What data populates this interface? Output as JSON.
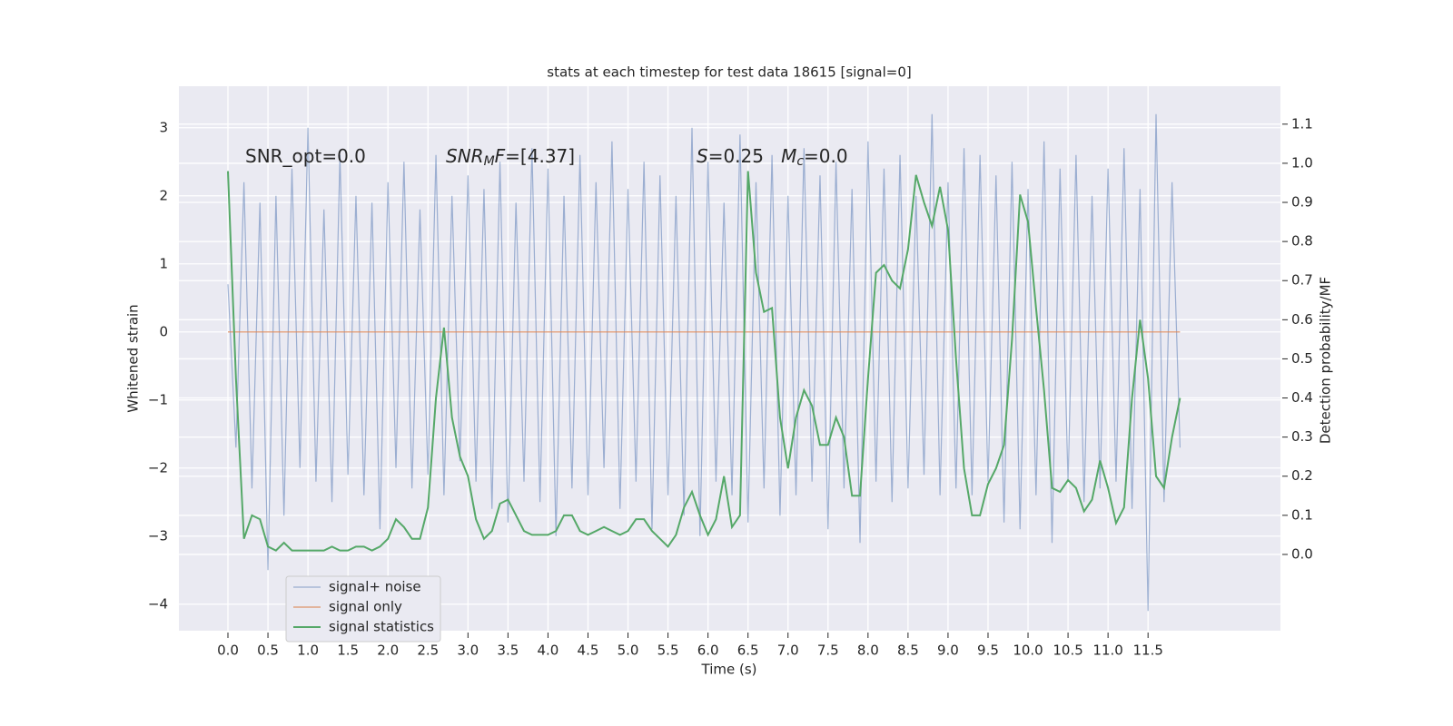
{
  "chart_data": {
    "type": "line",
    "title": "stats at each timestep for test data 18615 [signal=0]",
    "x_label": "Time (s)",
    "y_label": "Whitened strain",
    "y2_label": "Detection probability/MF",
    "annotations": [
      {
        "parts": [
          "SNR_opt=0.0"
        ]
      },
      {
        "parts": [
          "SNR",
          "M",
          "F",
          "=[4.37]"
        ]
      },
      {
        "parts": [
          "S",
          "=0.25   ",
          "M",
          "c",
          "=0.0"
        ]
      }
    ],
    "grid": true,
    "legend": "lower left",
    "background": "#eaeaf2",
    "xlim": [
      -0.613,
      13.155
    ],
    "xticks": [
      {
        "value": 0,
        "label": "0.0"
      },
      0.5,
      {
        "value": 1,
        "label": "1.0"
      },
      1.5,
      {
        "value": 2,
        "label": "2.0"
      },
      2.5,
      {
        "value": 3,
        "label": "3.0"
      },
      3.5,
      {
        "value": 4,
        "label": "4.0"
      },
      4.5,
      {
        "value": 5,
        "label": "5.0"
      },
      5.5,
      {
        "value": 6,
        "label": "6.0"
      },
      6.5,
      {
        "value": 7,
        "label": "7.0"
      },
      7.5,
      {
        "value": 8,
        "label": "8.0"
      },
      8.5,
      {
        "value": 9,
        "label": "9.0"
      },
      9.5,
      {
        "value": 10,
        "label": "10.0"
      },
      10.5,
      {
        "value": 11,
        "label": "11.0"
      },
      11.5
    ],
    "ylim": [
      -4.39,
      3.61
    ],
    "yticks": [
      {
        "value": -4,
        "label": "−4"
      },
      {
        "value": -3,
        "label": "−3"
      },
      {
        "value": -2,
        "label": "−2"
      },
      {
        "value": -1,
        "label": "−1"
      },
      0,
      1,
      2,
      3
    ],
    "y2lim": [
      -0.195,
      1.197
    ],
    "y2ticks": [
      {
        "value": 0,
        "label": "0.0"
      },
      0.1,
      0.2,
      0.3,
      0.4,
      0.5,
      0.6,
      0.7,
      0.8,
      0.9,
      {
        "value": 1,
        "label": "1.0"
      },
      1.1
    ],
    "x": [
      0.0,
      0.1,
      0.2,
      0.3,
      0.4,
      0.5,
      0.6,
      0.7,
      0.8,
      0.9,
      1.0,
      1.1,
      1.2,
      1.3,
      1.4,
      1.5,
      1.6,
      1.7,
      1.8,
      1.9,
      2.0,
      2.1,
      2.2,
      2.3,
      2.4,
      2.5,
      2.6,
      2.7,
      2.8,
      2.9,
      3.0,
      3.1,
      3.2,
      3.3,
      3.4,
      3.5,
      3.6,
      3.7,
      3.8,
      3.9,
      4.0,
      4.1,
      4.2,
      4.3,
      4.4,
      4.5,
      4.6,
      4.7,
      4.8,
      4.9,
      5.0,
      5.1,
      5.2,
      5.3,
      5.4,
      5.5,
      5.6,
      5.7,
      5.8,
      5.9,
      6.0,
      6.1,
      6.2,
      6.3,
      6.4,
      6.5,
      6.6,
      6.7,
      6.8,
      6.9,
      7.0,
      7.1,
      7.2,
      7.3,
      7.4,
      7.5,
      7.6,
      7.7,
      7.8,
      7.9,
      8.0,
      8.1,
      8.2,
      8.3,
      8.4,
      8.5,
      8.6,
      8.7,
      8.8,
      8.9,
      9.0,
      9.1,
      9.2,
      9.3,
      9.4,
      9.5,
      9.6,
      9.7,
      9.8,
      9.9,
      10.0,
      10.1,
      10.2,
      10.3,
      10.4,
      10.5,
      10.6,
      10.7,
      10.8,
      10.9,
      11.0,
      11.1,
      11.2,
      11.3,
      11.4,
      11.5,
      11.6,
      11.7,
      11.8,
      11.9
    ],
    "series": [
      {
        "name": "signal+ noise",
        "color": "#4c72b0",
        "values": [
          0.7,
          -1.7,
          2.2,
          -2.3,
          1.9,
          -3.5,
          2.0,
          -2.7,
          2.4,
          -2.0,
          3.0,
          -2.2,
          1.8,
          -2.5,
          2.6,
          -2.1,
          2.0,
          -2.4,
          1.9,
          -2.9,
          2.2,
          -2.0,
          2.5,
          -2.3,
          1.8,
          -2.1,
          2.6,
          -2.4,
          2.0,
          -1.9,
          2.3,
          -2.2,
          2.1,
          -2.6,
          2.5,
          -2.8,
          1.9,
          -2.2,
          2.7,
          -2.5,
          2.4,
          -3.0,
          2.0,
          -2.3,
          2.6,
          -2.4,
          2.2,
          -2.0,
          2.8,
          -2.6,
          2.1,
          -2.2,
          2.5,
          -2.9,
          2.3,
          -2.4,
          2.0,
          -2.7,
          3.0,
          -3.0,
          2.5,
          -2.2,
          1.9,
          -2.4,
          2.9,
          -2.8,
          2.2,
          -2.3,
          2.6,
          -2.7,
          2.0,
          -2.4,
          2.7,
          -2.2,
          2.3,
          -2.9,
          2.5,
          -2.3,
          2.1,
          -3.1,
          2.8,
          -2.2,
          2.4,
          -2.5,
          2.6,
          -2.3,
          2.0,
          -2.1,
          3.2,
          -2.4,
          2.2,
          -2.3,
          2.7,
          -2.4,
          2.6,
          -2.2,
          2.3,
          -2.8,
          2.5,
          -2.9,
          2.1,
          -2.4,
          2.8,
          -3.1,
          2.4,
          -2.2,
          2.6,
          -2.5,
          2.0,
          -2.3,
          2.4,
          -2.2,
          2.7,
          -2.6,
          2.1,
          -4.1,
          3.2,
          -2.5,
          2.2,
          -1.7
        ]
      },
      {
        "name": "signal only",
        "color": "#dd8452",
        "values": [
          0,
          0,
          0,
          0,
          0,
          0,
          0,
          0,
          0,
          0,
          0,
          0,
          0,
          0,
          0,
          0,
          0,
          0,
          0,
          0,
          0,
          0,
          0,
          0,
          0,
          0,
          0,
          0,
          0,
          0,
          0,
          0,
          0,
          0,
          0,
          0,
          0,
          0,
          0,
          0,
          0,
          0,
          0,
          0,
          0,
          0,
          0,
          0,
          0,
          0,
          0,
          0,
          0,
          0,
          0,
          0,
          0,
          0,
          0,
          0,
          0,
          0,
          0,
          0,
          0,
          0,
          0,
          0,
          0,
          0,
          0,
          0,
          0,
          0,
          0,
          0,
          0,
          0,
          0,
          0,
          0,
          0,
          0,
          0,
          0,
          0,
          0,
          0,
          0,
          0,
          0,
          0,
          0,
          0,
          0,
          0,
          0,
          0,
          0,
          0,
          0,
          0,
          0,
          0,
          0,
          0,
          0,
          0,
          0,
          0,
          0,
          0,
          0,
          0,
          0,
          0,
          0,
          0,
          0,
          0
        ]
      },
      {
        "name": "signal statistics",
        "color": "#55a868",
        "axis": "y2",
        "values": [
          0.98,
          0.45,
          0.04,
          0.1,
          0.09,
          0.02,
          0.01,
          0.03,
          0.01,
          0.01,
          0.01,
          0.01,
          0.01,
          0.02,
          0.01,
          0.01,
          0.02,
          0.02,
          0.01,
          0.02,
          0.04,
          0.09,
          0.07,
          0.04,
          0.04,
          0.12,
          0.4,
          0.58,
          0.35,
          0.25,
          0.2,
          0.09,
          0.04,
          0.06,
          0.13,
          0.14,
          0.1,
          0.06,
          0.05,
          0.05,
          0.05,
          0.06,
          0.1,
          0.1,
          0.06,
          0.05,
          0.06,
          0.07,
          0.06,
          0.05,
          0.06,
          0.09,
          0.09,
          0.06,
          0.04,
          0.02,
          0.05,
          0.12,
          0.16,
          0.1,
          0.05,
          0.09,
          0.2,
          0.07,
          0.1,
          0.98,
          0.72,
          0.62,
          0.63,
          0.35,
          0.22,
          0.35,
          0.42,
          0.38,
          0.28,
          0.28,
          0.35,
          0.3,
          0.15,
          0.15,
          0.45,
          0.72,
          0.74,
          0.7,
          0.68,
          0.78,
          0.97,
          0.9,
          0.84,
          0.94,
          0.83,
          0.5,
          0.22,
          0.1,
          0.1,
          0.18,
          0.22,
          0.28,
          0.55,
          0.92,
          0.85,
          0.63,
          0.42,
          0.17,
          0.16,
          0.19,
          0.17,
          0.11,
          0.14,
          0.24,
          0.17,
          0.08,
          0.12,
          0.4,
          0.6,
          0.45,
          0.2,
          0.17,
          0.3,
          0.4
        ]
      }
    ]
  }
}
